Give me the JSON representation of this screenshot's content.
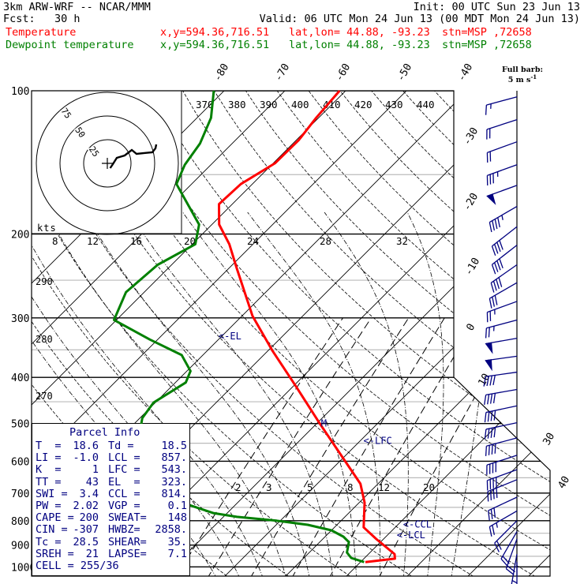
{
  "header": {
    "title": "3km ARW-WRF -- NCAR/MMM",
    "init": "Init: 00 UTC Sun 23 Jun 13",
    "fcst": "Fcst:   30 h",
    "valid": "Valid: 06 UTC Mon 24 Jun 13 (00 MDT Mon 24 Jun 13)",
    "temp_row": {
      "label": "Temperature",
      "xy": "x,y=594.36,716.51",
      "latlon": "lat,lon= 44.88, -93.23",
      "stn": "stn=MSP ,72658"
    },
    "dew_row": {
      "label": "Dewpoint temperature",
      "xy": "x,y=594.36,716.51",
      "latlon": "lat,lon= 44.88, -93.23",
      "stn": "stn=MSP ,72658"
    }
  },
  "legend": {
    "full_barb_line1": "Full barb:",
    "full_barb_line2": "5 m s",
    "full_barb_unit_exp": "-1"
  },
  "colors": {
    "temperature": "#ff0000",
    "dewpoint": "#008000",
    "annotation": "#000080",
    "wind": "#000080"
  },
  "parcel_info": {
    "title": "Parcel Info",
    "rows": [
      {
        "l1": "T  =",
        "v1": "18.6",
        "l2": "Td =",
        "v2": "18.5"
      },
      {
        "l1": "LI =",
        "v1": "-1.0",
        "l2": "LCL =",
        "v2": "857."
      },
      {
        "l1": "K  =",
        "v1": "1",
        "l2": "LFC =",
        "v2": "543."
      },
      {
        "l1": "TT =",
        "v1": "43",
        "l2": "EL  =",
        "v2": "323."
      },
      {
        "l1": "SWI =",
        "v1": "3.4",
        "l2": "CCL =",
        "v2": "814."
      },
      {
        "l1": "PW =",
        "v1": "2.02",
        "l2": "VGP =",
        "v2": "0.1"
      },
      {
        "l1": "CAPE =",
        "v1": "200",
        "l2": "SWEAT=",
        "v2": "148"
      },
      {
        "l1": "CIN =",
        "v1": "-307",
        "l2": "HWBZ=",
        "v2": "2858."
      },
      {
        "l1": "Tc =",
        "v1": "28.5",
        "l2": "SHEAR=",
        "v2": "35."
      },
      {
        "l1": "SREH =",
        "v1": "21",
        "l2": "LAPSE=",
        "v2": "7.1"
      },
      {
        "l1": "CELL = 255/36",
        "v1": "",
        "l2": "",
        "v2": ""
      }
    ]
  },
  "chart_data": {
    "type": "skew-t",
    "pressure_axis": {
      "unit": "hPa",
      "labels": [
        "100",
        "200",
        "300",
        "400",
        "500",
        "600",
        "700",
        "800",
        "900",
        "1000"
      ],
      "values": [
        100,
        200,
        300,
        400,
        500,
        600,
        700,
        800,
        900,
        1000
      ],
      "minor": [
        150,
        250,
        350,
        450,
        550,
        650,
        750,
        850,
        950
      ],
      "range": [
        100,
        1050
      ]
    },
    "isotherm_labels_top": [
      "-80",
      "-70",
      "-60",
      "-50",
      "-40"
    ],
    "isotherm_labels_right": [
      "-30",
      "-20",
      "-10",
      "0",
      "10",
      "30",
      "40"
    ],
    "theta_labels_top": [
      "370",
      "380",
      "390",
      "400",
      "410",
      "420",
      "430",
      "440"
    ],
    "theta_labels_left": [
      "290",
      "280",
      "270"
    ],
    "moist_adiabat_labels": [
      "8",
      "12",
      "16",
      "20",
      "24",
      "28",
      "32"
    ],
    "mixing_ratio_labels": [
      "2",
      "3",
      "5",
      "8",
      "12",
      "20"
    ],
    "temperature": [
      {
        "p": 100,
        "t": -61.0
      },
      {
        "p": 114,
        "t": -60.4
      },
      {
        "p": 127,
        "t": -59.6
      },
      {
        "p": 142,
        "t": -59.7
      },
      {
        "p": 157,
        "t": -61.9
      },
      {
        "p": 173,
        "t": -62.2
      },
      {
        "p": 191,
        "t": -58.8
      },
      {
        "p": 210,
        "t": -53.9
      },
      {
        "p": 236,
        "t": -48.7
      },
      {
        "p": 297,
        "t": -38.3
      },
      {
        "p": 352,
        "t": -29.2
      },
      {
        "p": 418,
        "t": -19.5
      },
      {
        "p": 500,
        "t": -9.5
      },
      {
        "p": 597,
        "t": 0.6
      },
      {
        "p": 669,
        "t": 7.1
      },
      {
        "p": 733,
        "t": 10.9
      },
      {
        "p": 826,
        "t": 14.8
      },
      {
        "p": 874,
        "t": 18.8
      },
      {
        "p": 940,
        "t": 24.3
      },
      {
        "p": 961,
        "t": 25.1
      },
      {
        "p": 977,
        "t": 20.8
      }
    ],
    "dewpoint": [
      {
        "p": 100,
        "t": -81.7
      },
      {
        "p": 114,
        "t": -77.7
      },
      {
        "p": 129,
        "t": -75.3
      },
      {
        "p": 143,
        "t": -74.3
      },
      {
        "p": 157,
        "t": -72.5
      },
      {
        "p": 191,
        "t": -62.1
      },
      {
        "p": 210,
        "t": -59.5
      },
      {
        "p": 232,
        "t": -62.3
      },
      {
        "p": 265,
        "t": -63.0
      },
      {
        "p": 303,
        "t": -60.4
      },
      {
        "p": 333,
        "t": -51.3
      },
      {
        "p": 359,
        "t": -43.5
      },
      {
        "p": 388,
        "t": -39.4
      },
      {
        "p": 410,
        "t": -38.3
      },
      {
        "p": 452,
        "t": -40.3
      },
      {
        "p": 487,
        "t": -39.6
      },
      {
        "p": 546,
        "t": -36.4
      },
      {
        "p": 590,
        "t": -34.2
      },
      {
        "p": 625,
        "t": -31.4
      },
      {
        "p": 661,
        "t": -27.3
      },
      {
        "p": 701,
        "t": -22.7
      },
      {
        "p": 742,
        "t": -17.5
      },
      {
        "p": 771,
        "t": -12.3
      },
      {
        "p": 785,
        "t": -7.8
      },
      {
        "p": 800,
        "t": -0.6
      },
      {
        "p": 816,
        "t": 5.2
      },
      {
        "p": 838,
        "t": 10.0
      },
      {
        "p": 864,
        "t": 13.0
      },
      {
        "p": 887,
        "t": 14.8
      },
      {
        "p": 933,
        "t": 16.2
      },
      {
        "p": 958,
        "t": 17.8
      },
      {
        "p": 977,
        "t": 20.6
      }
    ],
    "annotations": [
      {
        "label": "<-EL",
        "p": 328,
        "t": -40.5
      },
      {
        "label": "M",
        "p": 500,
        "t": -9.3
      },
      {
        "label": "<-LFC",
        "p": 543,
        "t": 0.5
      },
      {
        "label": "<-CCL",
        "p": 814,
        "t": 20.8
      },
      {
        "label": "<-LCL",
        "p": 857,
        "t": 21.5
      }
    ],
    "wind_barbs_unit": "m/s",
    "wind_barbs": [
      {
        "p": 103,
        "dir": 255,
        "spd": 7.5
      },
      {
        "p": 115,
        "dir": 252,
        "spd": 10
      },
      {
        "p": 128,
        "dir": 250,
        "spd": 10
      },
      {
        "p": 143,
        "dir": 250,
        "spd": 17.5
      },
      {
        "p": 158,
        "dir": 250,
        "spd": 25
      },
      {
        "p": 175,
        "dir": 240,
        "spd": 22.5
      },
      {
        "p": 193,
        "dir": 232,
        "spd": 20
      },
      {
        "p": 211,
        "dir": 232,
        "spd": 20
      },
      {
        "p": 232,
        "dir": 235,
        "spd": 20
      },
      {
        "p": 253,
        "dir": 240,
        "spd": 15
      },
      {
        "p": 277,
        "dir": 250,
        "spd": 12.5
      },
      {
        "p": 303,
        "dir": 255,
        "spd": 12.5
      },
      {
        "p": 331,
        "dir": 260,
        "spd": 25
      },
      {
        "p": 361,
        "dir": 262,
        "spd": 25
      },
      {
        "p": 390,
        "dir": 262,
        "spd": 20
      },
      {
        "p": 424,
        "dir": 260,
        "spd": 20
      },
      {
        "p": 459,
        "dir": 258,
        "spd": 20
      },
      {
        "p": 498,
        "dir": 258,
        "spd": 20
      },
      {
        "p": 536,
        "dir": 255,
        "spd": 20
      },
      {
        "p": 583,
        "dir": 252,
        "spd": 20
      },
      {
        "p": 625,
        "dir": 250,
        "spd": 20
      },
      {
        "p": 656,
        "dir": 248,
        "spd": 20
      },
      {
        "p": 714,
        "dir": 245,
        "spd": 15
      },
      {
        "p": 763,
        "dir": 240,
        "spd": 12.5
      },
      {
        "p": 800,
        "dir": 225,
        "spd": 10
      },
      {
        "p": 843,
        "dir": 210,
        "spd": 10
      },
      {
        "p": 874,
        "dir": 200,
        "spd": 10
      },
      {
        "p": 940,
        "dir": 190,
        "spd": 7.5
      },
      {
        "p": 977,
        "dir": 180,
        "spd": 5
      }
    ],
    "hodograph": {
      "unit": "kts",
      "rings": [
        "25",
        "50",
        "75"
      ],
      "trace_uv": [
        [
          3,
          -5
        ],
        [
          5.8,
          -0.8
        ],
        [
          10,
          5.8
        ],
        [
          18.3,
          8.3
        ],
        [
          25.8,
          14.2
        ],
        [
          30.8,
          10
        ],
        [
          40,
          11
        ],
        [
          47.5,
          11.7
        ],
        [
          50.8,
          15.8
        ],
        [
          51.7,
          20
        ]
      ]
    }
  }
}
